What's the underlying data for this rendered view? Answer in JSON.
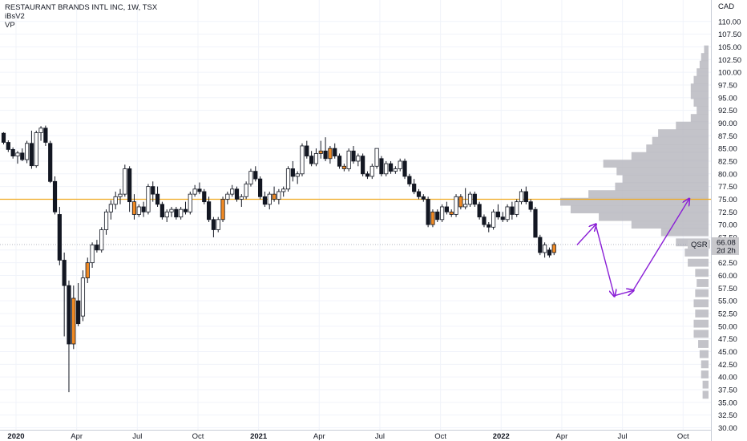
{
  "header": {
    "title": "RESTAURANT BRANDS INTL INC, 1W, TSX",
    "indicator_1": "iBsV2",
    "indicator_2": "VP"
  },
  "chart_data": {
    "type": "candlestick",
    "currency": "CAD",
    "symbol": "QSR",
    "last_price": "66.08",
    "countdown": "2d 2h",
    "yticks": [
      "30.00",
      "32.50",
      "35.00",
      "37.50",
      "40.00",
      "42.50",
      "45.00",
      "47.50",
      "50.00",
      "52.50",
      "55.00",
      "57.50",
      "60.00",
      "62.50",
      "65.00",
      "67.50",
      "70.00",
      "72.50",
      "75.00",
      "77.50",
      "80.00",
      "82.50",
      "85.00",
      "87.50",
      "90.00",
      "92.50",
      "95.00",
      "97.50",
      "100.00",
      "102.50",
      "105.00",
      "107.50",
      "110.00"
    ],
    "xticks": [
      {
        "label": "2020",
        "bold": true,
        "week": 0
      },
      {
        "label": "Apr",
        "bold": false,
        "week": 13
      },
      {
        "label": "Jul",
        "bold": false,
        "week": 26
      },
      {
        "label": "Oct",
        "bold": false,
        "week": 39
      },
      {
        "label": "2021",
        "bold": true,
        "week": 52
      },
      {
        "label": "Apr",
        "bold": false,
        "week": 65
      },
      {
        "label": "Jul",
        "bold": false,
        "week": 78
      },
      {
        "label": "Oct",
        "bold": false,
        "week": 91
      },
      {
        "label": "2022",
        "bold": true,
        "week": 104
      },
      {
        "label": "Apr",
        "bold": false,
        "week": 117
      },
      {
        "label": "Jul",
        "bold": false,
        "week": 130
      },
      {
        "label": "Oct",
        "bold": false,
        "week": 143
      }
    ],
    "ylim": [
      30,
      112
    ],
    "horizontal_level": 75.0,
    "candles": [
      [
        88.0,
        88.2,
        85.8,
        86.2
      ],
      [
        86.2,
        86.6,
        84.3,
        84.8
      ],
      [
        84.8,
        85.2,
        83.0,
        83.5
      ],
      [
        83.5,
        84.5,
        82.0,
        84.1
      ],
      [
        84.1,
        85.0,
        82.5,
        82.8
      ],
      [
        82.8,
        86.5,
        82.1,
        86.0
      ],
      [
        86.0,
        88.5,
        81.0,
        81.6
      ],
      [
        81.6,
        88.5,
        81.2,
        88.1
      ],
      [
        88.1,
        89.4,
        86.5,
        89.0
      ],
      [
        89.0,
        89.5,
        85.5,
        86.2
      ],
      [
        86.0,
        86.5,
        78.2,
        78.5
      ],
      [
        78.5,
        79.5,
        72.0,
        72.5
      ],
      [
        72.0,
        73.5,
        62.0,
        63.0
      ],
      [
        63.0,
        64.5,
        48.0,
        58.0
      ],
      [
        58.0,
        59.0,
        37.0,
        46.5
      ],
      [
        46.5,
        58.0,
        45.5,
        55.5
      ],
      [
        55.0,
        58.5,
        50.0,
        50.5
      ],
      [
        52.0,
        61.0,
        51.0,
        59.5
      ],
      [
        59.5,
        63.5,
        58.5,
        62.5
      ],
      [
        62.5,
        66.5,
        61.5,
        66.0
      ],
      [
        66.0,
        67.0,
        64.5,
        65.0
      ],
      [
        65.0,
        69.5,
        64.5,
        69.0
      ],
      [
        69.0,
        73.0,
        68.0,
        72.5
      ],
      [
        72.5,
        74.8,
        71.0,
        74.0
      ],
      [
        74.0,
        76.5,
        73.0,
        75.5
      ],
      [
        75.5,
        77.0,
        74.0,
        76.0
      ],
      [
        76.0,
        81.8,
        75.5,
        81.0
      ],
      [
        81.0,
        81.5,
        72.5,
        74.5
      ],
      [
        74.5,
        76.0,
        71.0,
        72.0
      ],
      [
        72.0,
        74.0,
        71.5,
        73.5
      ],
      [
        73.5,
        74.5,
        71.5,
        72.5
      ],
      [
        72.5,
        78.0,
        72.0,
        77.5
      ],
      [
        77.5,
        78.5,
        74.5,
        76.0
      ],
      [
        76.0,
        77.5,
        73.5,
        74.0
      ],
      [
        74.0,
        74.5,
        71.0,
        71.5
      ],
      [
        71.5,
        73.0,
        70.5,
        72.5
      ],
      [
        72.5,
        73.5,
        71.5,
        73.0
      ],
      [
        73.0,
        73.5,
        71.0,
        71.5
      ],
      [
        71.5,
        73.5,
        71.0,
        73.0
      ],
      [
        73.0,
        74.5,
        72.0,
        72.5
      ],
      [
        72.5,
        76.5,
        72.0,
        76.0
      ],
      [
        76.0,
        77.8,
        75.5,
        77.0
      ],
      [
        77.0,
        78.3,
        76.0,
        76.5
      ],
      [
        76.5,
        77.0,
        74.0,
        74.5
      ],
      [
        74.5,
        75.5,
        70.5,
        71.0
      ],
      [
        71.0,
        71.5,
        67.5,
        69.0
      ],
      [
        69.0,
        71.5,
        68.5,
        71.0
      ],
      [
        71.0,
        75.5,
        70.5,
        75.0
      ],
      [
        75.0,
        76.5,
        74.0,
        76.0
      ],
      [
        76.0,
        77.8,
        75.5,
        77.0
      ],
      [
        77.0,
        77.5,
        74.5,
        75.0
      ],
      [
        75.0,
        76.0,
        73.5,
        75.5
      ],
      [
        75.5,
        78.5,
        75.0,
        78.0
      ],
      [
        78.0,
        81.0,
        77.5,
        80.5
      ],
      [
        80.5,
        81.5,
        78.5,
        79.0
      ],
      [
        79.0,
        79.5,
        75.0,
        75.5
      ],
      [
        75.5,
        76.5,
        73.5,
        74.0
      ],
      [
        74.0,
        76.5,
        73.0,
        76.0
      ],
      [
        76.0,
        77.5,
        74.5,
        75.0
      ],
      [
        75.0,
        77.0,
        74.0,
        76.5
      ],
      [
        76.5,
        77.5,
        75.5,
        77.0
      ],
      [
        77.0,
        81.5,
        76.5,
        81.0
      ],
      [
        81.0,
        82.5,
        78.5,
        79.5
      ],
      [
        79.5,
        80.5,
        78.0,
        80.0
      ],
      [
        80.0,
        86.0,
        79.5,
        85.5
      ],
      [
        85.5,
        86.5,
        83.0,
        83.5
      ],
      [
        83.5,
        84.5,
        81.5,
        82.0
      ],
      [
        82.0,
        85.0,
        81.5,
        84.0
      ],
      [
        84.0,
        86.5,
        83.0,
        84.5
      ],
      [
        84.5,
        87.2,
        82.5,
        83.0
      ],
      [
        83.0,
        85.5,
        82.0,
        85.0
      ],
      [
        85.0,
        86.0,
        83.0,
        83.5
      ],
      [
        83.5,
        84.0,
        81.0,
        81.5
      ],
      [
        81.5,
        82.0,
        80.5,
        81.0
      ],
      [
        81.0,
        85.0,
        80.5,
        84.5
      ],
      [
        84.5,
        85.5,
        82.0,
        82.5
      ],
      [
        82.5,
        84.0,
        81.5,
        83.5
      ],
      [
        83.5,
        84.0,
        79.5,
        80.0
      ],
      [
        80.0,
        80.5,
        79.0,
        79.5
      ],
      [
        79.5,
        82.0,
        79.0,
        81.5
      ],
      [
        81.5,
        85.0,
        81.0,
        85.0
      ],
      [
        83.0,
        83.5,
        79.5,
        80.0
      ],
      [
        80.0,
        82.5,
        79.5,
        82.0
      ],
      [
        82.0,
        82.5,
        80.0,
        80.5
      ],
      [
        80.5,
        81.5,
        80.0,
        81.0
      ],
      [
        81.0,
        83.0,
        80.5,
        82.5
      ],
      [
        82.5,
        83.0,
        79.0,
        79.5
      ],
      [
        79.5,
        80.0,
        77.5,
        78.0
      ],
      [
        78.0,
        79.0,
        76.0,
        76.5
      ],
      [
        76.5,
        77.0,
        75.0,
        75.5
      ],
      [
        75.5,
        76.0,
        74.5,
        75.0
      ],
      [
        75.0,
        75.5,
        69.5,
        70.0
      ],
      [
        70.0,
        73.0,
        69.5,
        72.5
      ],
      [
        72.5,
        73.0,
        70.5,
        71.0
      ],
      [
        71.0,
        74.0,
        70.5,
        73.5
      ],
      [
        73.5,
        74.5,
        72.0,
        72.5
      ],
      [
        72.5,
        73.0,
        71.5,
        72.0
      ],
      [
        72.0,
        76.0,
        71.5,
        75.5
      ],
      [
        75.5,
        76.0,
        73.0,
        73.5
      ],
      [
        73.5,
        77.2,
        73.0,
        74.0
      ],
      [
        74.0,
        76.5,
        73.5,
        76.0
      ],
      [
        76.0,
        76.5,
        73.5,
        74.0
      ],
      [
        74.0,
        74.5,
        71.0,
        71.5
      ],
      [
        71.5,
        72.0,
        69.5,
        70.0
      ],
      [
        70.0,
        70.5,
        68.5,
        69.5
      ],
      [
        69.5,
        73.0,
        69.0,
        72.5
      ],
      [
        72.5,
        74.0,
        71.0,
        71.5
      ],
      [
        71.5,
        72.5,
        70.5,
        71.0
      ],
      [
        71.0,
        74.0,
        70.5,
        73.5
      ],
      [
        73.5,
        74.5,
        71.0,
        72.0
      ],
      [
        72.0,
        75.0,
        71.5,
        74.5
      ],
      [
        74.5,
        77.0,
        74.0,
        76.5
      ],
      [
        76.5,
        77.5,
        74.0,
        74.5
      ],
      [
        74.5,
        75.0,
        72.5,
        73.0
      ],
      [
        73.0,
        73.5,
        67.5,
        67.5
      ],
      [
        67.5,
        68.0,
        64.0,
        64.5
      ],
      [
        64.5,
        66.5,
        63.5,
        66.0
      ],
      [
        65.0,
        65.5,
        63.5,
        64.0
      ],
      [
        64.5,
        66.5,
        64.0,
        66.08
      ]
    ],
    "orange_candles": [
      15,
      18,
      28,
      47,
      58,
      68,
      70,
      73,
      92,
      96,
      98,
      118
    ],
    "volume_profile": [
      {
        "price": 36.5,
        "vol": 0.04
      },
      {
        "price": 38.5,
        "vol": 0.04
      },
      {
        "price": 40.5,
        "vol": 0.05
      },
      {
        "price": 42.5,
        "vol": 0.05
      },
      {
        "price": 44.5,
        "vol": 0.06
      },
      {
        "price": 46.5,
        "vol": 0.07
      },
      {
        "price": 48.5,
        "vol": 0.1
      },
      {
        "price": 50.5,
        "vol": 0.1
      },
      {
        "price": 52.5,
        "vol": 0.09
      },
      {
        "price": 54.5,
        "vol": 0.1
      },
      {
        "price": 56.5,
        "vol": 0.09
      },
      {
        "price": 58.5,
        "vol": 0.08
      },
      {
        "price": 60.5,
        "vol": 0.09
      },
      {
        "price": 62.5,
        "vol": 0.14
      },
      {
        "price": 64.5,
        "vol": 0.16
      },
      {
        "price": 66.5,
        "vol": 0.22
      },
      {
        "price": 68.5,
        "vol": 0.32
      },
      {
        "price": 70.0,
        "vol": 0.52
      },
      {
        "price": 71.5,
        "vol": 0.74
      },
      {
        "price": 73.0,
        "vol": 0.93
      },
      {
        "price": 74.5,
        "vol": 1.0
      },
      {
        "price": 76.0,
        "vol": 0.81
      },
      {
        "price": 77.5,
        "vol": 0.63
      },
      {
        "price": 79.0,
        "vol": 0.58
      },
      {
        "price": 80.5,
        "vol": 0.62
      },
      {
        "price": 82.0,
        "vol": 0.71
      },
      {
        "price": 83.5,
        "vol": 0.52
      },
      {
        "price": 85.0,
        "vol": 0.42
      },
      {
        "price": 86.5,
        "vol": 0.38
      },
      {
        "price": 88.0,
        "vol": 0.34
      },
      {
        "price": 89.5,
        "vol": 0.22
      },
      {
        "price": 91.0,
        "vol": 0.12
      },
      {
        "price": 92.5,
        "vol": 0.08
      },
      {
        "price": 94.0,
        "vol": 0.1
      },
      {
        "price": 95.5,
        "vol": 0.12
      },
      {
        "price": 97.0,
        "vol": 0.12
      },
      {
        "price": 98.5,
        "vol": 0.1
      },
      {
        "price": 100.0,
        "vol": 0.08
      },
      {
        "price": 101.5,
        "vol": 0.06
      },
      {
        "price": 103.0,
        "vol": 0.05
      },
      {
        "price": 104.5,
        "vol": 0.03
      }
    ],
    "projection": [
      {
        "week": 123,
        "price": 66.0
      },
      {
        "week": 127,
        "price": 70.0
      },
      {
        "week": 131,
        "price": 56.0
      },
      {
        "week": 135,
        "price": 57.0
      },
      {
        "week": 147,
        "price": 75.0
      }
    ],
    "colors": {
      "candle_up": "#ffffff",
      "candle_down": "#131722",
      "candle_orange": "#f08a24",
      "level_line": "#f0a91f",
      "volume_profile": "#b8b8bf",
      "projection": "#8a1fd6",
      "price_label_bg": "#c8c8cc",
      "grid": "#f0f3fa"
    }
  }
}
